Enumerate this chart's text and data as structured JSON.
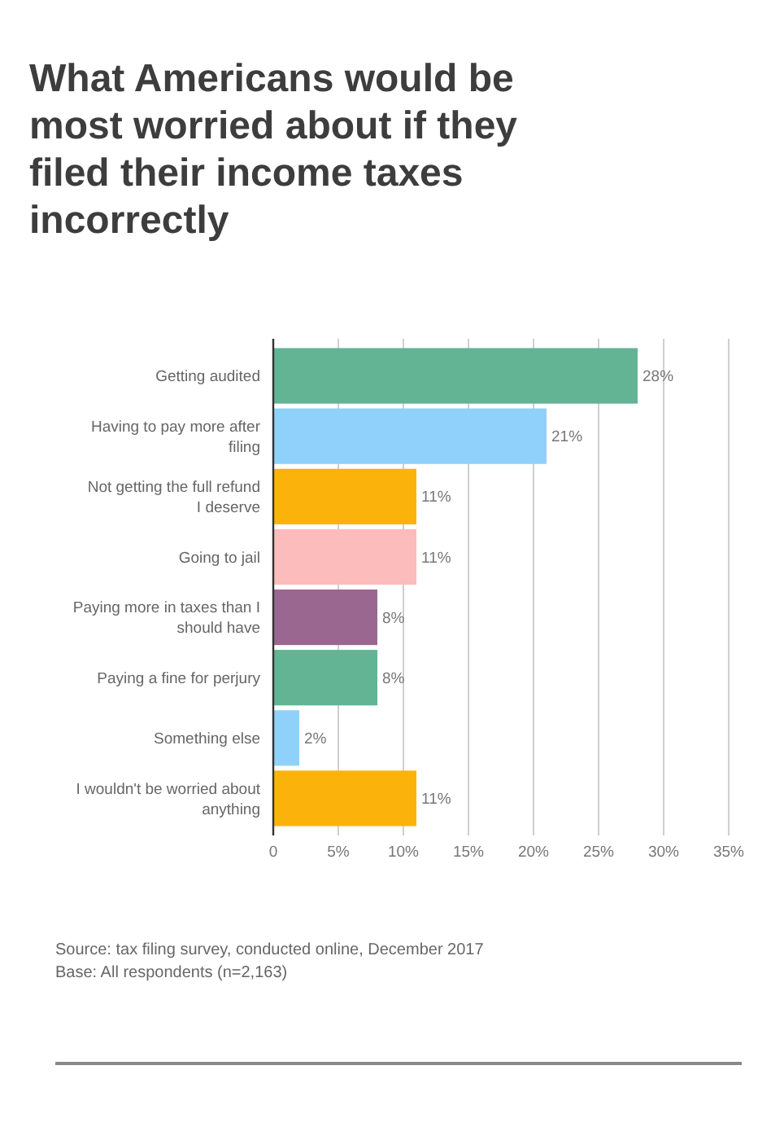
{
  "chart_data": {
    "type": "bar",
    "orientation": "horizontal",
    "title": "What Americans would be most worried about if they filed their income taxes incorrectly",
    "categories": [
      "Getting audited",
      "Having to pay more after filing",
      "Not getting the full refund I deserve",
      "Going to jail",
      "Paying more in taxes than I should have",
      "Paying a fine for perjury",
      "Something else",
      "I wouldn't be worried about anything"
    ],
    "values": [
      28,
      21,
      11,
      11,
      8,
      8,
      2,
      11
    ],
    "colors": [
      "#63b395",
      "#8fd1fb",
      "#fbb30b",
      "#fcbcbc",
      "#9a6790",
      "#63b395",
      "#8fd1fb",
      "#fbb30b"
    ],
    "value_labels": [
      "28%",
      "21%",
      "11%",
      "11%",
      "8%",
      "8%",
      "2%",
      "11%"
    ],
    "xlim": [
      0,
      35
    ],
    "xticks": [
      0,
      {
        "value": 5,
        "label": "5%"
      },
      {
        "value": 10,
        "label": "10%"
      },
      {
        "value": 15,
        "label": "15%"
      },
      {
        "value": 20,
        "label": "20%"
      },
      {
        "value": 25,
        "label": "25%"
      },
      {
        "value": 30,
        "label": "30%"
      },
      {
        "value": 35,
        "label": "35%"
      }
    ],
    "grid": "x",
    "annotations": [
      "Source: tax filing survey, conducted online, December 2017",
      "Base: All respondents (n=2,163)"
    ]
  }
}
